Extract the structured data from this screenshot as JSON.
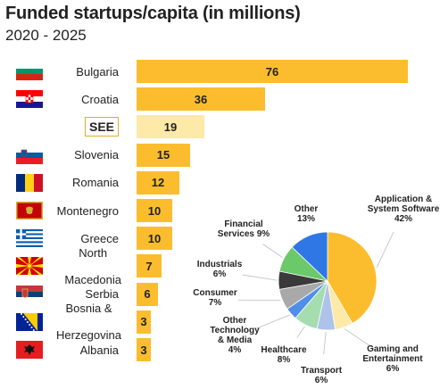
{
  "header": {
    "title": "Funded startups/capita (in millions)",
    "subtitle": "2020 - 2025"
  },
  "chart_data": [
    {
      "type": "bar",
      "orientation": "horizontal",
      "categories": [
        "Bulgaria",
        "Croatia",
        "SEE",
        "Slovenia",
        "Romania",
        "Montenegro",
        "Greece",
        "North Macedonia",
        "Serbia",
        "Bosnia & Herzegovina",
        "Albania"
      ],
      "category_lines": [
        [
          "Bulgaria"
        ],
        [
          "Croatia"
        ],
        [
          "SEE"
        ],
        [
          "Slovenia"
        ],
        [
          "Romania"
        ],
        [
          "Montenegro"
        ],
        [
          "Greece"
        ],
        [
          "North",
          "Macedonia"
        ],
        [
          "Serbia"
        ],
        [
          "Bosnia &",
          "Herzegovina"
        ],
        [
          "Albania"
        ]
      ],
      "values": [
        76,
        36,
        19,
        15,
        12,
        10,
        10,
        7,
        6,
        3,
        3
      ],
      "highlight": "SEE",
      "xlim": [
        0,
        76
      ],
      "grid": false,
      "colors": {
        "bar": "#fbbd2d",
        "highlight_bar": "#fde9a8",
        "highlight_border": "#e0ad2a"
      }
    },
    {
      "type": "pie",
      "slices": [
        {
          "label_lines": [
            "Application &",
            "System  Software",
            "42%"
          ],
          "value": 42,
          "color": "#fbbd2d"
        },
        {
          "label_lines": [
            "Gaming and",
            "Entertainment",
            "6%"
          ],
          "value": 6,
          "color": "#fde9a8"
        },
        {
          "label_lines": [
            "Transport",
            "6%"
          ],
          "value": 6,
          "color": "#aec3ea"
        },
        {
          "label_lines": [
            "Healthcare",
            "8%"
          ],
          "value": 8,
          "color": "#a6ddb0"
        },
        {
          "label_lines": [
            "Other",
            "Technology",
            "&  Media",
            "4%"
          ],
          "value": 4,
          "color": "#4f8fe8"
        },
        {
          "label_lines": [
            "Consumer",
            "7%"
          ],
          "value": 7,
          "color": "#a9a9a9"
        },
        {
          "label_lines": [
            "Industrials",
            "6%"
          ],
          "value": 6,
          "color": "#3a3a3a"
        },
        {
          "label_lines": [
            "Financial",
            "Services  9%"
          ],
          "value": 9,
          "color": "#6cc96a"
        },
        {
          "label_lines": [
            "Other",
            "13%"
          ],
          "value": 13,
          "color": "#2f77e5"
        }
      ]
    }
  ],
  "flags": [
    "bulgaria-flag-icon",
    "croatia-flag-icon",
    "",
    "slovenia-flag-icon",
    "romania-flag-icon",
    "montenegro-flag-icon",
    "greece-flag-icon",
    "north-macedonia-flag-icon",
    "serbia-flag-icon",
    "bosnia-flag-icon",
    "albania-flag-icon"
  ]
}
